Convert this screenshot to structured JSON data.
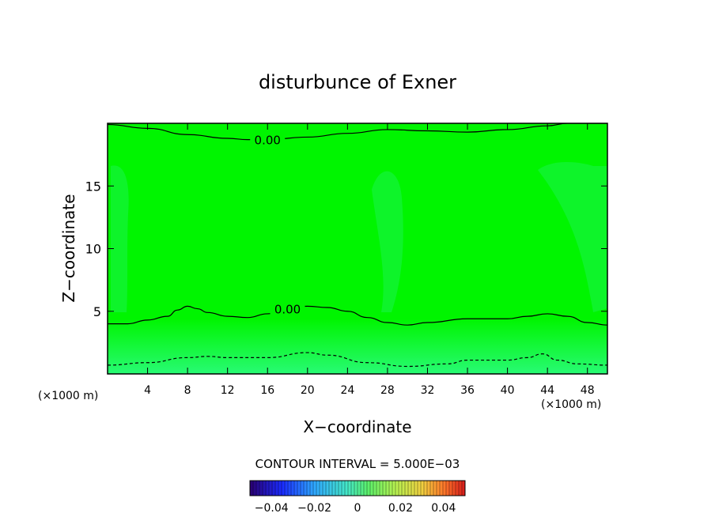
{
  "chart_data": {
    "type": "heatmap",
    "title": "disturbunce of Exner",
    "xlabel": "X−coordinate",
    "ylabel": "Z−coordinate",
    "xlim": [
      0,
      50
    ],
    "ylim": [
      0,
      20
    ],
    "x_ticks": [
      4,
      8,
      12,
      16,
      20,
      24,
      28,
      32,
      36,
      40,
      44,
      48
    ],
    "y_ticks": [
      5,
      10,
      15
    ],
    "x_unit_left": "(×1000 m)",
    "x_unit_right": "(×1000 m)",
    "contour_interval_text": "CONTOUR INTERVAL = 5.000E−03",
    "colorbar": {
      "range": [
        -0.05,
        0.05
      ],
      "tick_values": [
        -0.04,
        -0.02,
        0,
        0.02,
        0.04
      ],
      "tick_labels": [
        "−0.04",
        "−0.02",
        "0",
        "0.02",
        "0.04"
      ]
    },
    "field_colors": {
      "top": "#00f500",
      "bottom": "#28fa74",
      "lighter_patch": "#14f43c"
    },
    "contours": [
      {
        "label": "0.00",
        "style": "solid",
        "points": [
          [
            0,
            19.9
          ],
          [
            4,
            19.6
          ],
          [
            8,
            19.1
          ],
          [
            12,
            18.8
          ],
          [
            14,
            18.7
          ],
          [
            16,
            18.7
          ],
          [
            20,
            18.9
          ],
          [
            24,
            19.2
          ],
          [
            28,
            19.5
          ],
          [
            32,
            19.4
          ],
          [
            36,
            19.3
          ],
          [
            40,
            19.5
          ],
          [
            44,
            19.8
          ],
          [
            46,
            20.0
          ],
          [
            50,
            20.0
          ]
        ]
      },
      {
        "label": "0.00",
        "style": "solid",
        "points": [
          [
            0,
            4.0
          ],
          [
            2,
            4.0
          ],
          [
            4,
            4.3
          ],
          [
            6,
            4.6
          ],
          [
            7,
            5.1
          ],
          [
            8,
            5.4
          ],
          [
            9,
            5.2
          ],
          [
            10,
            4.9
          ],
          [
            12,
            4.6
          ],
          [
            14,
            4.5
          ],
          [
            16,
            4.8
          ],
          [
            18,
            5.2
          ],
          [
            20,
            5.4
          ],
          [
            22,
            5.3
          ],
          [
            24,
            5.0
          ],
          [
            26,
            4.5
          ],
          [
            28,
            4.1
          ],
          [
            30,
            3.9
          ],
          [
            32,
            4.1
          ],
          [
            36,
            4.4
          ],
          [
            38,
            4.4
          ],
          [
            40,
            4.4
          ],
          [
            42,
            4.6
          ],
          [
            44,
            4.8
          ],
          [
            46,
            4.6
          ],
          [
            48,
            4.1
          ],
          [
            50,
            3.9
          ]
        ]
      },
      {
        "label": "",
        "style": "dashed",
        "points": [
          [
            0,
            0.7
          ],
          [
            4,
            0.9
          ],
          [
            8,
            1.3
          ],
          [
            10,
            1.4
          ],
          [
            12,
            1.3
          ],
          [
            16,
            1.3
          ],
          [
            20,
            1.7
          ],
          [
            22,
            1.5
          ],
          [
            26,
            0.9
          ],
          [
            30,
            0.6
          ],
          [
            34,
            0.8
          ],
          [
            36,
            1.1
          ],
          [
            40,
            1.1
          ],
          [
            42,
            1.3
          ],
          [
            43.5,
            1.6
          ],
          [
            45,
            1.1
          ],
          [
            47,
            0.8
          ],
          [
            50,
            0.7
          ]
        ]
      }
    ]
  }
}
